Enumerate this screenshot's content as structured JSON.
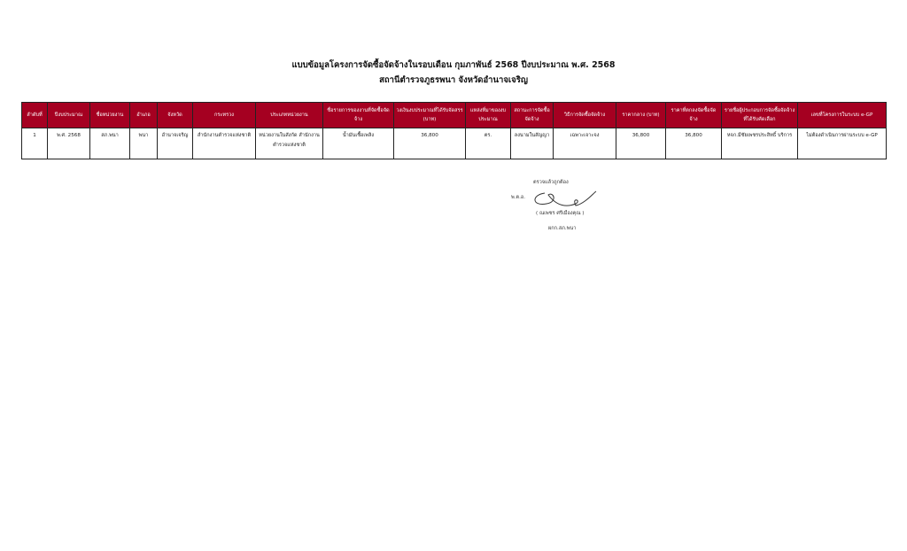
{
  "title_line1": "แบบข้อมูลโครงการจัดซื้อจัดจ้างในรอบเดือน กุมภาพันธ์ 2568 ปีงบประมาณ พ.ศ. 2568",
  "title_line2": "สถานีตำรวจภูธรพนา จังหวัดอำนาจเจริญ",
  "table": {
    "headers": [
      "ลำดับที่",
      "ปีงบประมาณ",
      "ชื่อหน่วยงาน",
      "อำเภอ",
      "จังหวัด",
      "กระทรวง",
      "ประเภทหน่วยงาน",
      "ชื่อรายการของงานที่จัดซื้อจัดจ้าง",
      "วงเงินงบประมาณที่ได้รับจัดสรร (บาท)",
      "แหล่งที่มาของงบประมาณ",
      "สถานะการจัดซื้อจัดจ้าง",
      "วิธีการจัดซื้อจัดจ้าง",
      "ราคากลาง (บาท)",
      "ราคาที่ตกลงจัดซื้อจัดจ้าง",
      "รายชื่อผู้ประกอบการจัดซื้อจัดจ้างที่ได้รับคัดเลือก",
      "เลขที่โครงการในระบบ e-GP"
    ],
    "rows": [
      [
        "1",
        "พ.ศ. 2568",
        "สภ.พนา",
        "พนา",
        "อำนาจเจริญ",
        "สำนักงานตำรวจแห่งชาติ",
        "หน่วยงานในสังกัด สำนักงานตำรวจแห่งชาติ",
        "น้ำมันเชื้อเพลิง",
        "36,800",
        "ตร.",
        "ลงนามในสัญญา",
        "เฉพาะเจาะจง",
        "36,800",
        "36,800",
        "หจก.มีชัยเพชรประสิทธิ์ บริการ",
        "ไม่ต้องดำเนินการผ่านระบบ e-GP"
      ]
    ]
  },
  "signature": {
    "certified": "ตรวจแล้วถูกต้อง",
    "rank": "พ.ต.อ.",
    "name": "( ณเพชร ศรีเมืองคุณ )",
    "position": "ผกก.สภ.พนา"
  },
  "colors": {
    "header_bg": "#a50021"
  }
}
